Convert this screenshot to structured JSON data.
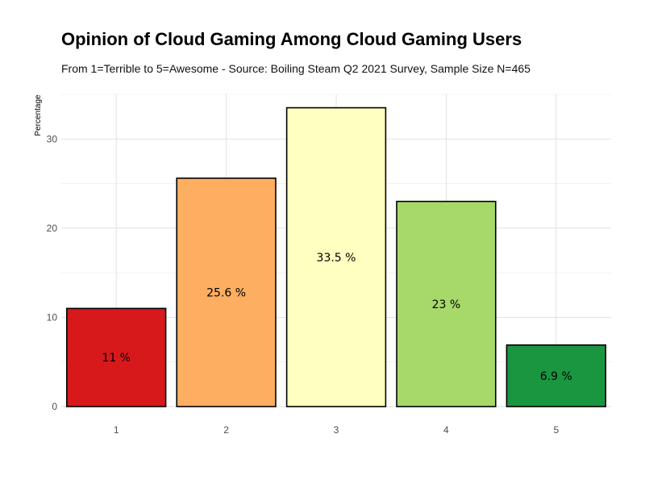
{
  "chart_data": {
    "type": "bar",
    "title": "Opinion of Cloud Gaming Among Cloud Gaming Users",
    "subtitle": "From 1=Terrible to 5=Awesome - Source: Boiling Steam Q2 2021 Survey, Sample Size N=465",
    "xlabel": "",
    "ylabel": "Percentage",
    "categories": [
      "1",
      "2",
      "3",
      "4",
      "5"
    ],
    "values": [
      11,
      25.6,
      33.5,
      23,
      6.9
    ],
    "data_labels": [
      "11 %",
      "25.6 %",
      "33.5 %",
      "23 %",
      "6.9 %"
    ],
    "bar_colors": [
      "#d7191c",
      "#fdae61",
      "#ffffbf",
      "#a6d96a",
      "#1a9641"
    ],
    "bar_outline_color": "#000000",
    "y_ticks": [
      "0",
      "10",
      "20",
      "30"
    ],
    "y_tick_values": [
      0,
      10,
      20,
      30
    ],
    "ylim": [
      0,
      35
    ],
    "grid": true,
    "legend": "none"
  }
}
